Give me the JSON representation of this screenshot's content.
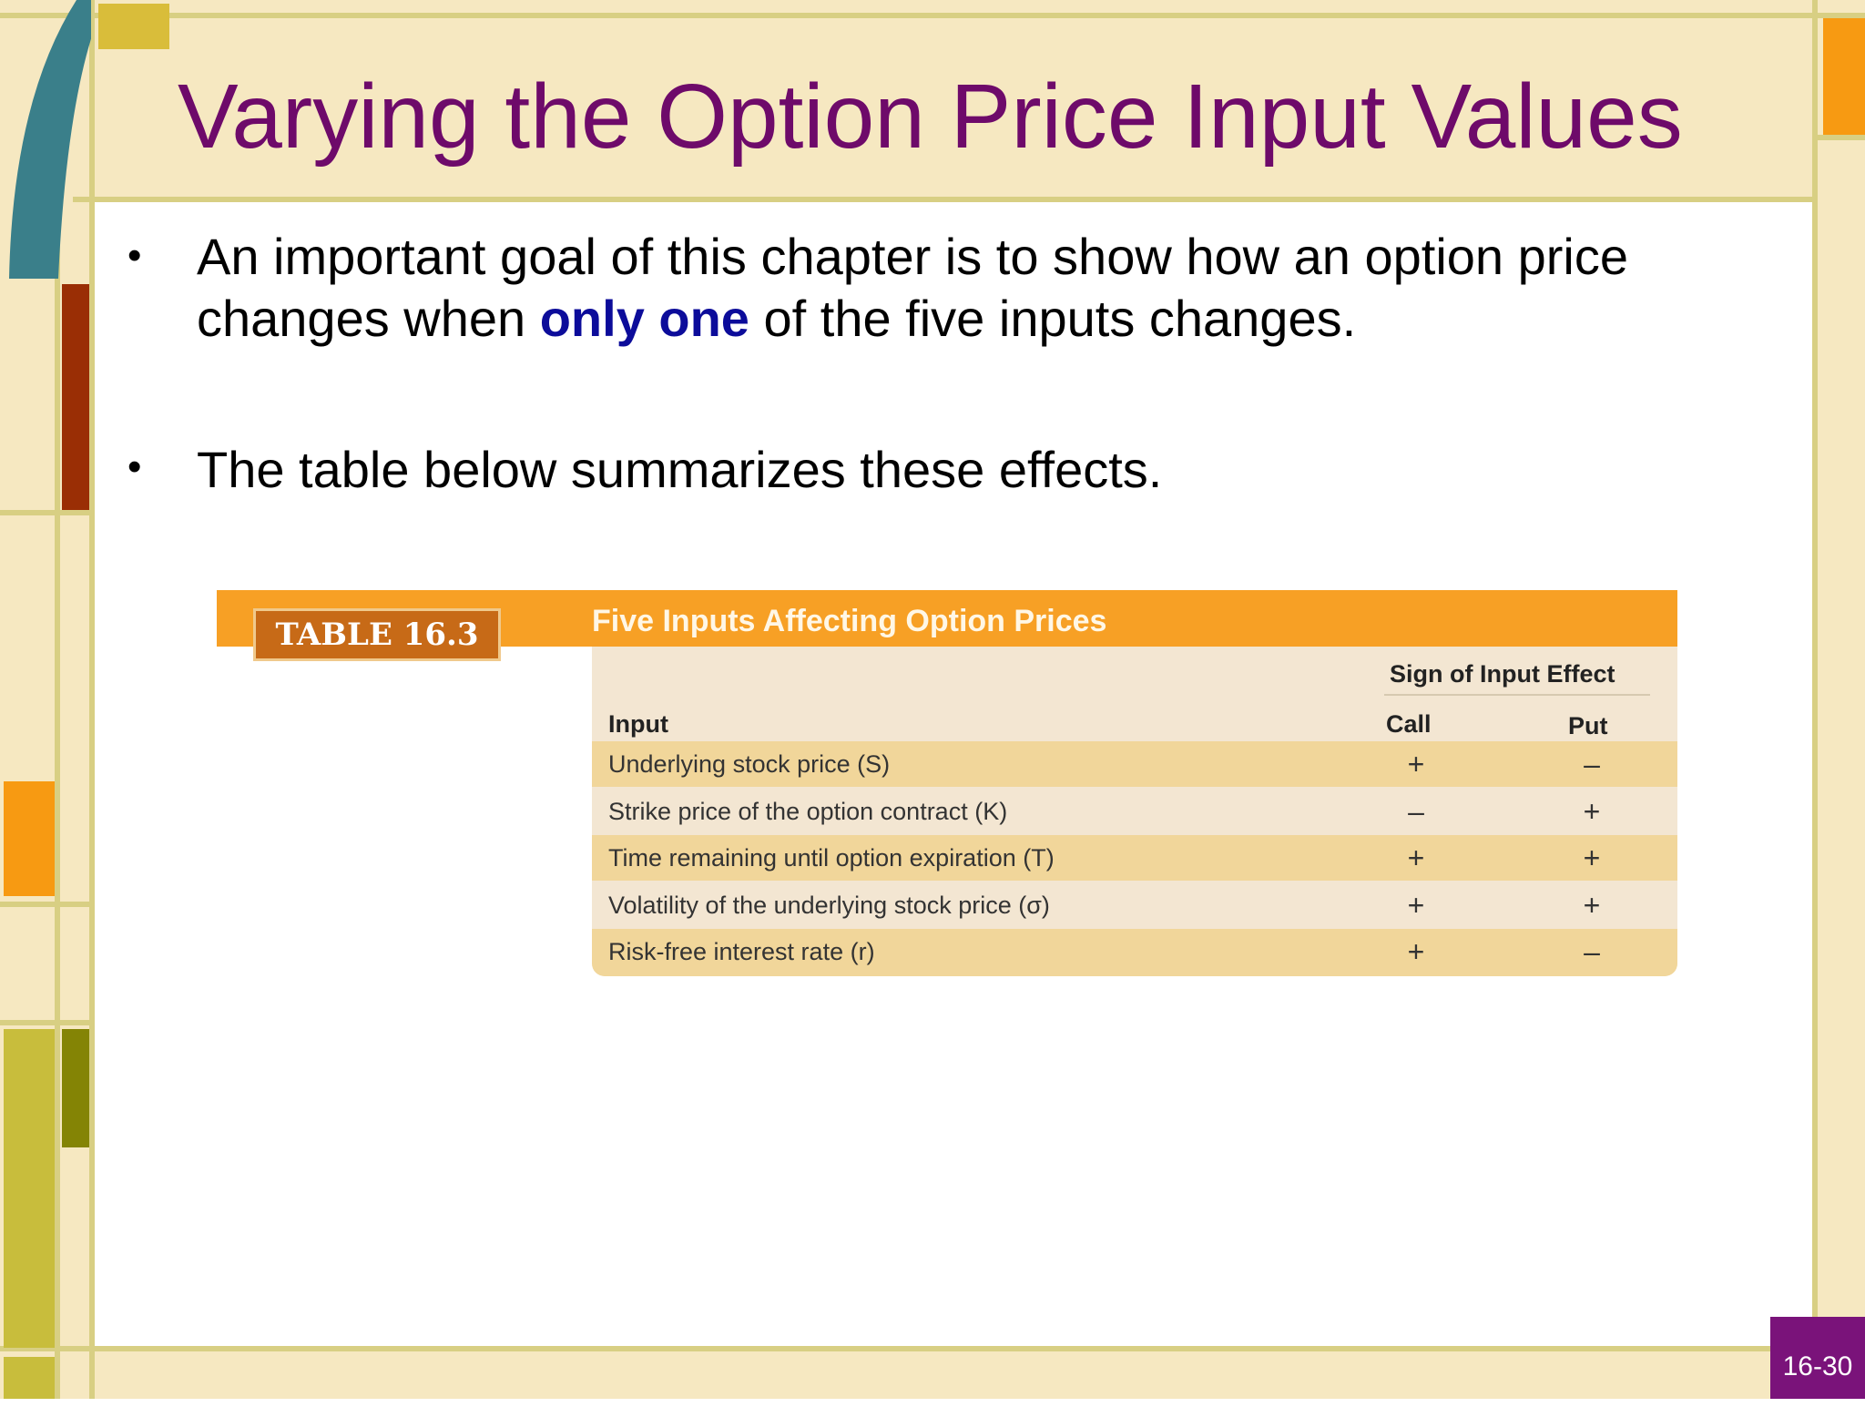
{
  "slide": {
    "title": "Varying the Option Price Input Values",
    "bullet1_pre": "An important goal of this chapter is to show how an option price changes when ",
    "bullet1_highlight": "only one",
    "bullet1_post": " of the five inputs changes.",
    "bullet2": "The table below summarizes these effects.",
    "page_number": "16-30"
  },
  "table": {
    "label": "TABLE 16.3",
    "title": "Five Inputs Affecting Option Prices",
    "group_header": "Sign of Input Effect",
    "columns": [
      "Input",
      "Call",
      "Put"
    ],
    "rows": [
      {
        "input": "Underlying stock price (S)",
        "call": "+",
        "put": "–"
      },
      {
        "input": "Strike price of the option contract (K)",
        "call": "–",
        "put": "+"
      },
      {
        "input": "Time remaining until option expiration (T)",
        "call": "+",
        "put": "+"
      },
      {
        "input": "Volatility of the underlying stock price (σ)",
        "call": "+",
        "put": "+"
      },
      {
        "input": "Risk-free interest rate (r)",
        "call": "+",
        "put": "–"
      }
    ]
  },
  "colors": {
    "title": "#6e0a6a",
    "highlight": "#0c0c9a",
    "table_header": "#f7a025",
    "table_label": "#c76a17",
    "row_alt": "#f1d69a",
    "row_plain": "#f3e6d2",
    "badge": "#7a137a"
  }
}
